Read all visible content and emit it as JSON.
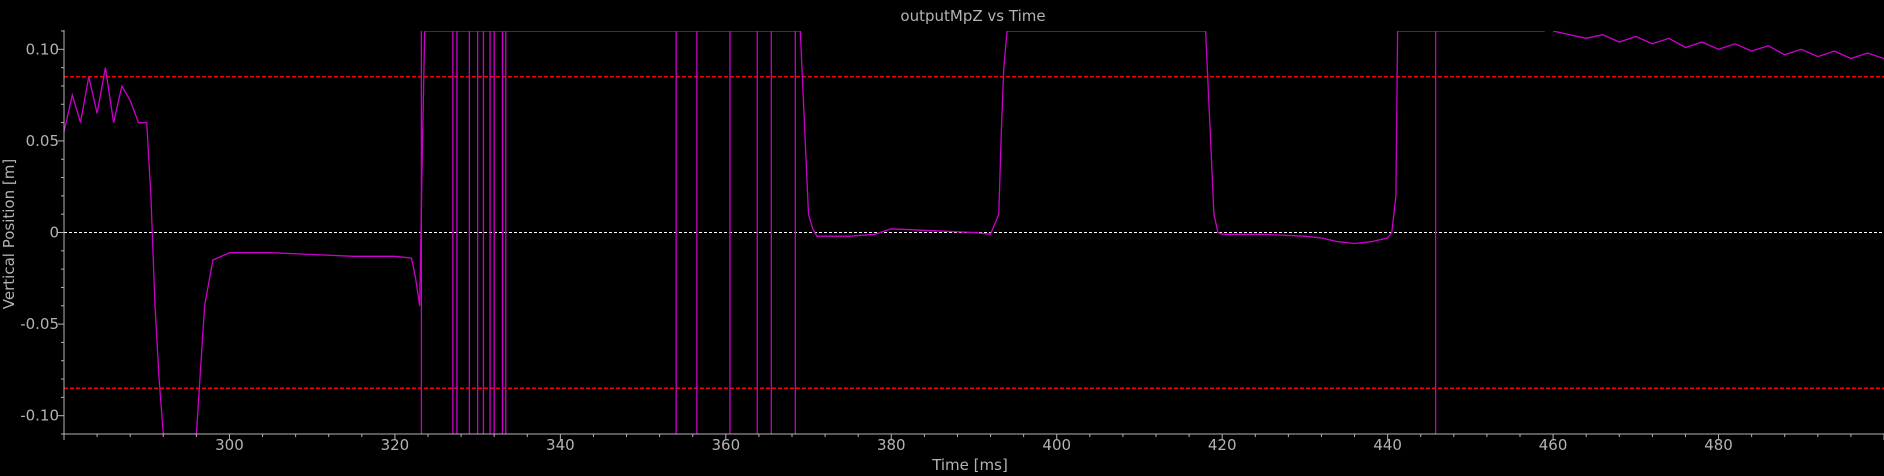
{
  "chart_data": {
    "type": "line",
    "title": "outputMpZ vs Time",
    "xlabel": "Time [ms]",
    "ylabel": "Vertical Position [m]",
    "xlim": [
      280,
      500
    ],
    "ylim": [
      -0.11,
      0.11
    ],
    "x_ticks": [
      300,
      320,
      340,
      360,
      380,
      400,
      420,
      440,
      460,
      480
    ],
    "y_ticks": [
      {
        "value": 0.1,
        "label": "0.10"
      },
      {
        "value": 0.05,
        "label": "0.05"
      },
      {
        "value": 0,
        "label": "0"
      },
      {
        "value": -0.05,
        "label": "-0.05"
      },
      {
        "value": -0.1,
        "label": "-0.10"
      }
    ],
    "grid": false,
    "colors": {
      "background": "#000000",
      "axis": "#b3b3b3",
      "signal": "#cc00cc",
      "limit": "#ff0000",
      "zero_line": "#ffffff"
    },
    "reference_lines": [
      {
        "y": 0.085,
        "style": "dashed",
        "color": "#ff0000"
      },
      {
        "y": -0.085,
        "style": "dashed",
        "color": "#ff0000"
      },
      {
        "y": 0,
        "style": "dashed",
        "color": "#ffffff"
      }
    ],
    "series": [
      {
        "color": "#cc00cc",
        "x": [
          280,
          281,
          282,
          283,
          284,
          285,
          286,
          287,
          288,
          289,
          290,
          290.5,
          291,
          291.5,
          292,
          296,
          297,
          298,
          300,
          305,
          310,
          315,
          320,
          322,
          322.5,
          323,
          323.3,
          323.6,
          324,
          366,
          369,
          369.5,
          370,
          370.5,
          371,
          372,
          375,
          378,
          380,
          385,
          390,
          392,
          393,
          393.3,
          393.6,
          394,
          418,
          418.5,
          419,
          419.5,
          420,
          425,
          430,
          432,
          434,
          436,
          438,
          440,
          440.5,
          441,
          441.2,
          459
        ],
        "y": [
          0.055,
          0.075,
          0.06,
          0.085,
          0.065,
          0.09,
          0.06,
          0.08,
          0.072,
          0.06,
          0.06,
          0.02,
          -0.04,
          -0.08,
          -0.11,
          -0.11,
          -0.04,
          -0.015,
          -0.011,
          -0.011,
          -0.012,
          -0.013,
          -0.013,
          -0.014,
          -0.025,
          -0.04,
          0.04,
          0.11,
          0.11,
          0.11,
          0.11,
          0.06,
          0.01,
          0.002,
          -0.002,
          -0.002,
          -0.002,
          -0.001,
          0.002,
          0.001,
          0.0,
          -0.001,
          0.01,
          0.055,
          0.09,
          0.11,
          0.11,
          0.06,
          0.01,
          0.0,
          -0.001,
          -0.001,
          -0.002,
          -0.003,
          -0.005,
          -0.006,
          -0.005,
          -0.003,
          0.0,
          0.02,
          0.11,
          0.11
        ]
      },
      {
        "color": "#cc00cc",
        "x": [
          460,
          462,
          464,
          466,
          468,
          470,
          472,
          474,
          476,
          478,
          480,
          482,
          484,
          486,
          488,
          490,
          492,
          494,
          496,
          498,
          500
        ],
        "y": [
          0.11,
          0.108,
          0.106,
          0.108,
          0.104,
          0.107,
          0.103,
          0.106,
          0.101,
          0.104,
          0.1,
          0.103,
          0.099,
          0.102,
          0.097,
          0.1,
          0.096,
          0.099,
          0.095,
          0.098,
          0.095
        ]
      }
    ],
    "spikes_x": [
      323.2,
      327,
      327.5,
      329,
      330,
      330.7,
      331.5,
      332,
      333,
      333.4,
      354,
      356.5,
      360.5,
      363.8,
      365.5,
      368.4,
      445.8
    ]
  }
}
